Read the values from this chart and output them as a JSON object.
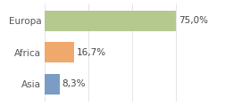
{
  "categories": [
    "Europa",
    "Africa",
    "Asia"
  ],
  "values": [
    75.0,
    16.7,
    8.3
  ],
  "bar_colors": [
    "#b5c98e",
    "#f0a96c",
    "#7b9cc4"
  ],
  "labels": [
    "75,0%",
    "16,7%",
    "8,3%"
  ],
  "background_color": "#ffffff",
  "xlim": [
    0,
    100
  ],
  "bar_height": 0.65,
  "label_fontsize": 7.5,
  "tick_fontsize": 7.5,
  "grid_color": "#e0e0e0",
  "grid_values": [
    0,
    25,
    50,
    75,
    100
  ]
}
